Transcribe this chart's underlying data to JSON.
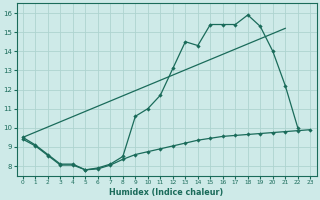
{
  "xlabel": "Humidex (Indice chaleur)",
  "bg_color": "#ceeae8",
  "grid_color": "#aed4d0",
  "line_color": "#1a6b5a",
  "xlim": [
    -0.5,
    23.5
  ],
  "ylim": [
    7.5,
    16.5
  ],
  "xticks": [
    0,
    1,
    2,
    3,
    4,
    5,
    6,
    7,
    8,
    9,
    10,
    11,
    12,
    13,
    14,
    15,
    16,
    17,
    18,
    19,
    20,
    21,
    22,
    23
  ],
  "yticks": [
    8,
    9,
    10,
    11,
    12,
    13,
    14,
    15,
    16
  ],
  "line1_x": [
    0,
    1,
    2,
    3,
    4,
    5,
    6,
    7,
    8,
    9,
    10,
    11,
    12,
    13,
    14,
    15,
    16,
    17,
    18,
    19,
    20,
    21,
    22
  ],
  "line1_y": [
    9.5,
    9.1,
    8.6,
    8.1,
    8.1,
    7.8,
    7.9,
    8.1,
    8.5,
    10.6,
    11.0,
    11.7,
    13.1,
    14.5,
    14.3,
    15.4,
    15.4,
    15.4,
    15.9,
    15.3,
    14.0,
    12.2,
    10.0
  ],
  "line2_x": [
    0,
    21
  ],
  "line2_y": [
    9.5,
    15.2
  ],
  "line3_x": [
    0,
    1,
    2,
    3,
    4,
    5,
    6,
    7,
    8,
    9,
    10,
    11,
    12,
    13,
    14,
    15,
    16,
    17,
    18,
    19,
    20,
    21,
    22,
    23
  ],
  "line3_y": [
    9.4,
    9.05,
    8.55,
    8.05,
    8.05,
    7.8,
    7.85,
    8.05,
    8.35,
    8.6,
    8.75,
    8.9,
    9.05,
    9.2,
    9.35,
    9.45,
    9.55,
    9.6,
    9.65,
    9.7,
    9.75,
    9.8,
    9.85,
    9.9
  ]
}
